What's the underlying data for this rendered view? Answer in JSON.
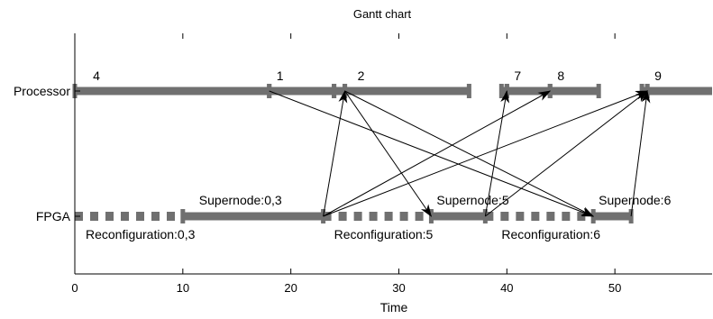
{
  "chart_data": {
    "type": "gantt",
    "title": "Gantt chart",
    "xlabel": "Time",
    "ylabel": "",
    "xlim": [
      0,
      59
    ],
    "xticks": [
      0,
      10,
      20,
      30,
      40,
      50
    ],
    "grid": false,
    "legend": "none",
    "colors": {
      "bar": "#707070",
      "arrow": "#000000",
      "axis": "#000000"
    },
    "rows": [
      {
        "key": "processor",
        "label": "Processor"
      },
      {
        "key": "fpga",
        "label": "FPGA"
      }
    ],
    "processor_tasks": [
      {
        "start": 0,
        "end": 18,
        "label": "4",
        "label_x": 2
      },
      {
        "start": 18,
        "end": 24,
        "label": "1",
        "label_x": 19
      },
      {
        "start": 24,
        "end": 25,
        "label": "",
        "label_x": 24.5
      },
      {
        "start": 25,
        "end": 36.5,
        "label": "2",
        "label_x": 26.5
      },
      {
        "start": 39.5,
        "end": 40,
        "label": "",
        "label_x": 39.7
      },
      {
        "start": 40,
        "end": 44,
        "label": "7",
        "label_x": 41
      },
      {
        "start": 44,
        "end": 48.5,
        "label": "8",
        "label_x": 45
      },
      {
        "start": 52.5,
        "end": 53,
        "label": "",
        "label_x": 52.7
      },
      {
        "start": 53,
        "end": 59,
        "label": "9",
        "label_x": 54
      }
    ],
    "fpga_segments": [
      {
        "type": "reconfiguration",
        "start": 0,
        "end": 10,
        "label": "Reconfiguration:0,3",
        "label_x": 1
      },
      {
        "type": "supernode",
        "start": 10,
        "end": 23,
        "label": "Supernode:0,3",
        "label_x": 11.5
      },
      {
        "type": "reconfiguration",
        "start": 23,
        "end": 33,
        "label": "Reconfiguration:5",
        "label_x": 24
      },
      {
        "type": "supernode",
        "start": 33,
        "end": 38,
        "label": "Supernode:5",
        "label_x": 33.5
      },
      {
        "type": "reconfiguration",
        "start": 38,
        "end": 48,
        "label": "Reconfiguration:6",
        "label_x": 39.5
      },
      {
        "type": "supernode",
        "start": 48,
        "end": 51.5,
        "label": "Supernode:6",
        "label_x": 48.5
      }
    ],
    "dependencies": [
      {
        "from_row": "processor",
        "from_x": 18,
        "to_row": "fpga",
        "to_x": 48
      },
      {
        "from_row": "processor",
        "from_x": 25,
        "to_row": "fpga",
        "to_x": 33
      },
      {
        "from_row": "processor",
        "from_x": 25,
        "to_row": "fpga",
        "to_x": 48
      },
      {
        "from_row": "fpga",
        "from_x": 23,
        "to_row": "processor",
        "to_x": 25
      },
      {
        "from_row": "fpga",
        "from_x": 23,
        "to_row": "processor",
        "to_x": 44
      },
      {
        "from_row": "fpga",
        "from_x": 23,
        "to_row": "processor",
        "to_x": 53
      },
      {
        "from_row": "fpga",
        "from_x": 38,
        "to_row": "processor",
        "to_x": 40
      },
      {
        "from_row": "fpga",
        "from_x": 38,
        "to_row": "processor",
        "to_x": 53
      },
      {
        "from_row": "fpga",
        "from_x": 51.5,
        "to_row": "processor",
        "to_x": 53
      }
    ]
  }
}
